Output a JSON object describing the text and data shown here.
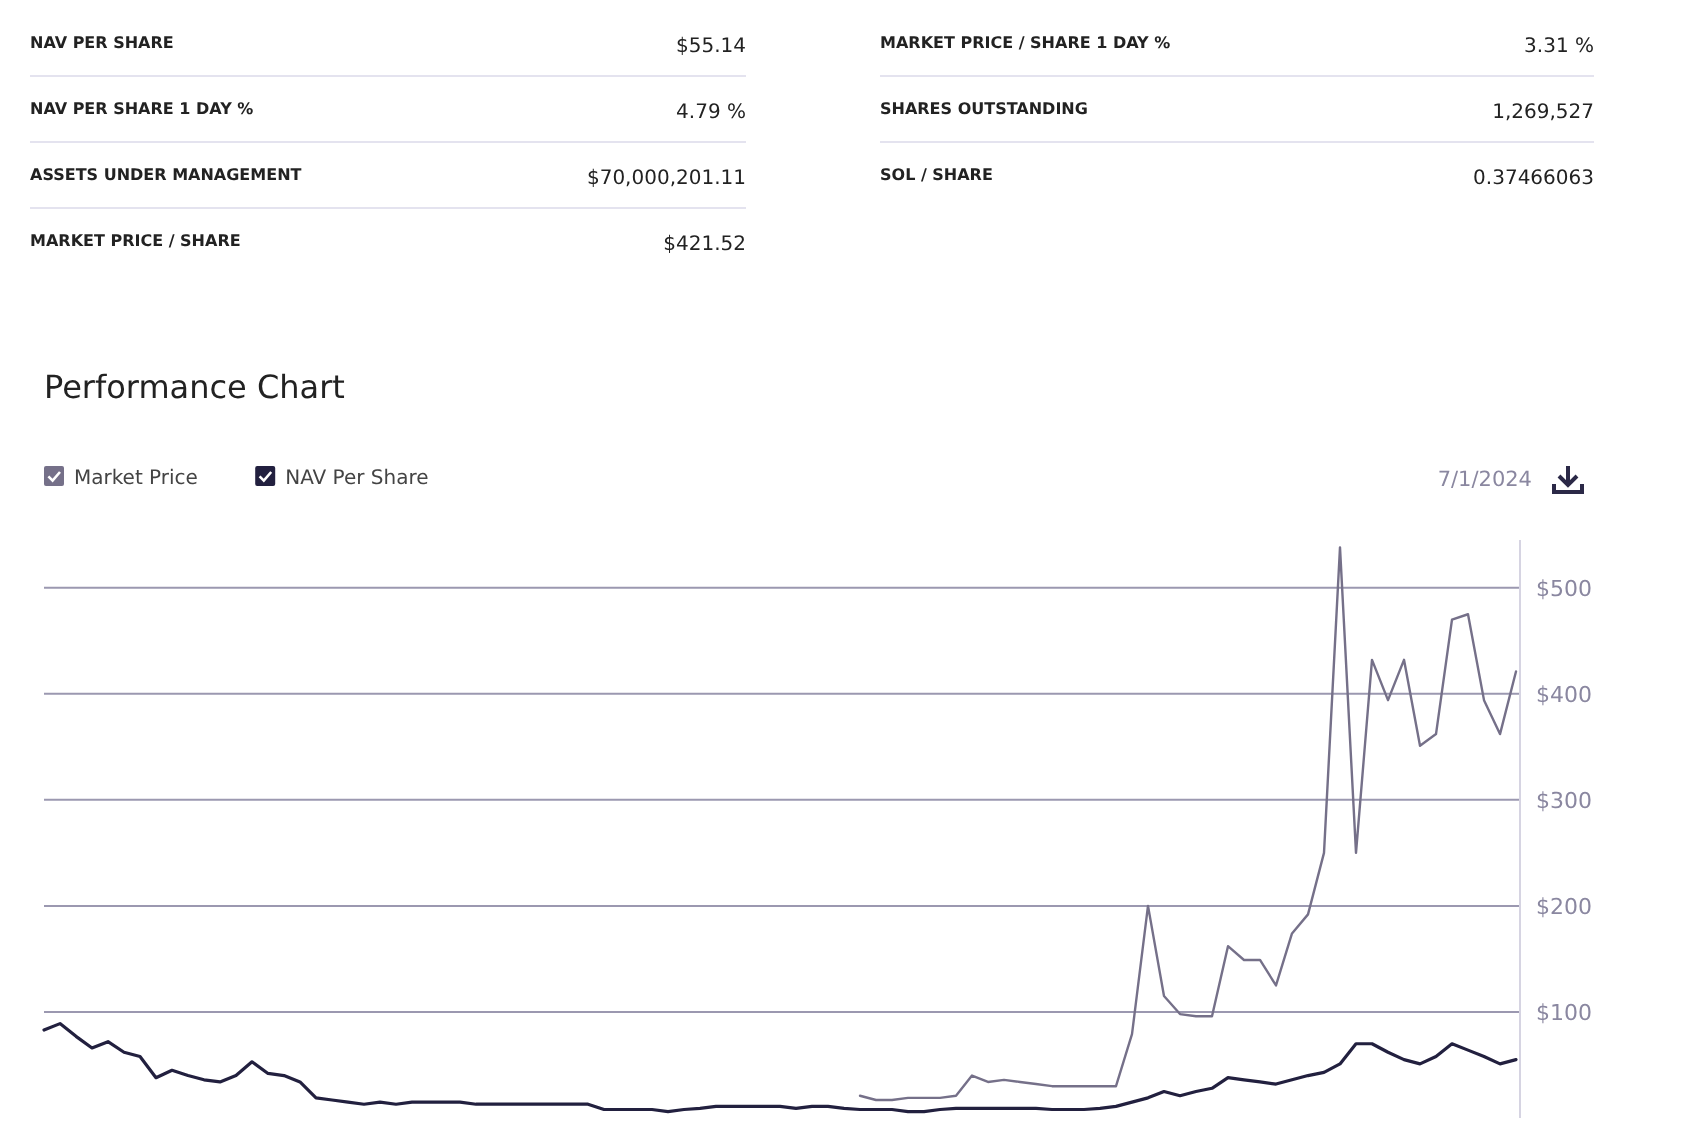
{
  "chart_data": [
    {
      "type": "other",
      "annotations": [
        "NAV PER SHARE",
        "$55.14",
        "NAV PER SHARE 1 DAY %",
        "4.79 %",
        "ASSETS UNDER MANAGEMENT",
        "$70,000,201.11",
        "MARKET PRICE / SHARE",
        "$421.52",
        "MARKET PRICE / SHARE 1 DAY %",
        "3.31 %",
        "SHARES OUTSTANDING",
        "1,269,527",
        "SOL / SHARE",
        "0.37466063"
      ]
    },
    {
      "type": "line",
      "title": "Performance Chart",
      "annotations": [
        "7/1/2024"
      ],
      "categories": [
        null,
        null,
        null,
        null,
        null,
        null,
        null,
        null,
        null,
        null,
        null,
        null,
        null,
        null,
        null,
        null,
        null,
        null,
        null,
        null,
        null,
        null,
        null,
        null,
        null,
        null,
        null,
        null,
        null,
        null,
        null,
        null,
        null,
        null,
        null,
        null,
        null,
        null,
        null,
        null,
        null,
        null,
        null,
        null,
        null,
        null,
        null,
        null,
        null,
        null,
        null,
        null,
        null,
        null,
        null,
        null,
        null,
        null,
        null,
        null,
        null,
        null,
        null,
        null,
        null,
        null,
        null,
        null,
        null,
        null,
        null,
        null,
        null,
        null,
        null,
        null,
        null,
        null,
        null,
        null,
        null,
        null,
        null,
        null,
        null,
        null,
        null,
        null,
        null,
        null,
        null,
        null,
        null
      ],
      "series": [
        {
          "name": "Market Price",
          "color": "#757089",
          "values": [
            null,
            null,
            null,
            null,
            null,
            null,
            null,
            null,
            null,
            null,
            null,
            null,
            null,
            null,
            null,
            null,
            null,
            null,
            null,
            null,
            null,
            null,
            null,
            null,
            null,
            null,
            null,
            null,
            null,
            null,
            null,
            null,
            null,
            null,
            null,
            null,
            null,
            null,
            null,
            null,
            null,
            null,
            null,
            null,
            null,
            null,
            null,
            null,
            null,
            null,
            null,
            21,
            17,
            17,
            19,
            19,
            19,
            21,
            40,
            34,
            36,
            34,
            32,
            30,
            30,
            30,
            30,
            30,
            79,
            200,
            115,
            98,
            96,
            96,
            162,
            149,
            149,
            125,
            174,
            192,
            250,
            538,
            250,
            432,
            394,
            432,
            351,
            362,
            470,
            475,
            394,
            362,
            421
          ]
        },
        {
          "name": "NAV Per Share",
          "color": "#22203f",
          "values": [
            83,
            89,
            77,
            66,
            72,
            62,
            58,
            38,
            45,
            40,
            36,
            34,
            40,
            53,
            42,
            40,
            34,
            19,
            17,
            15,
            13,
            15,
            13,
            15,
            15,
            15,
            15,
            13,
            13,
            13,
            13,
            13,
            13,
            13,
            13,
            8,
            8,
            8,
            8,
            6,
            8,
            9,
            11,
            11,
            11,
            11,
            11,
            9,
            11,
            11,
            9,
            8,
            8,
            8,
            6,
            6,
            8,
            9,
            9,
            9,
            9,
            9,
            9,
            8,
            8,
            8,
            9,
            11,
            15,
            19,
            25,
            21,
            25,
            28,
            38,
            36,
            34,
            32,
            36,
            40,
            43,
            51,
            70,
            70,
            62,
            55,
            51,
            58,
            70,
            64,
            58,
            51,
            55
          ]
        }
      ],
      "ylim": [
        0,
        545
      ],
      "yticks": [
        {
          "value": 100,
          "label": "$100"
        },
        {
          "value": 200,
          "label": "$200"
        },
        {
          "value": 300,
          "label": "$300"
        },
        {
          "value": 400,
          "label": "$400"
        },
        {
          "value": 500,
          "label": "$500"
        }
      ],
      "grid": "y",
      "legend": "top left",
      "marker": "none",
      "line_style": "solid",
      "tick_labels": "y"
    }
  ]
}
